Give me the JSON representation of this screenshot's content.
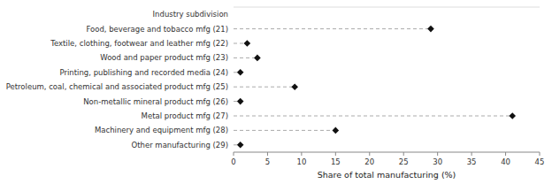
{
  "chart_data": {
    "type": "lollipop",
    "orientation": "horizontal",
    "categories": [
      "Industry subdivision",
      "Food, beverage and tobacco mfg (21)",
      "Textile, clothing, footwear and leather mfg (22)",
      "Wood and paper product mfg (23)",
      "Printing, publishing and recorded media (24)",
      "Petroleum, coal, chemical and associated product mfg (25)",
      "Non-metallic mineral product mfg (26)",
      "Metal product mfg (27)",
      "Machinery and equipment mfg (28)",
      "Other manufacturing (29)"
    ],
    "values": [
      null,
      29.0,
      2.0,
      3.5,
      1.0,
      9.0,
      1.0,
      41.0,
      15.0,
      1.0
    ],
    "xlabel": "Share of total manufacturing (%)",
    "xlim": [
      0,
      45
    ],
    "xticks": [
      0,
      5,
      10,
      15,
      20,
      25,
      30,
      35,
      40,
      45
    ],
    "color": "#111111",
    "marker": "diamond",
    "line_style": "dashed",
    "grid": false
  }
}
